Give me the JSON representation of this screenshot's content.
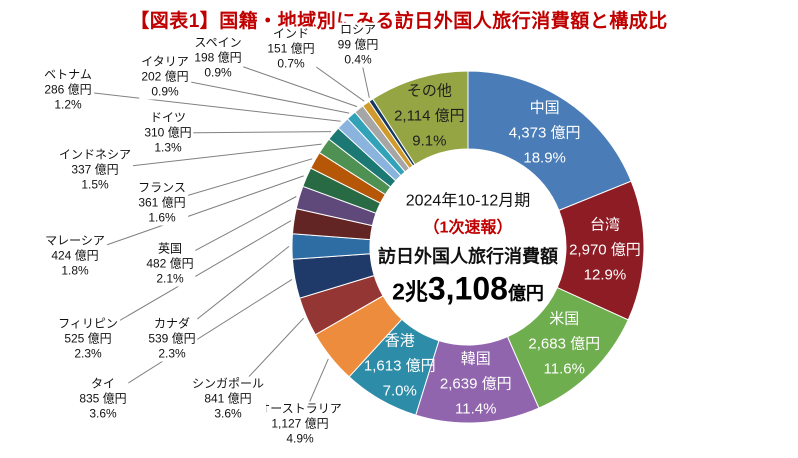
{
  "chart_data": {
    "type": "pie",
    "subtype": "donut",
    "title": "【図表1】国籍・地域別にみる訪日外国人旅行消費額と構成比",
    "title_color": "#c00000",
    "unit": "億円",
    "total": "2兆3,108億円",
    "legend_position": "none",
    "center_annotation": {
      "period": "2024年10-12月期",
      "note": "（1次速報）",
      "label": "訪日外国人旅行消費額",
      "total_prefix": "2兆",
      "total_main": "3,108",
      "total_suffix": "億円"
    },
    "segments": [
      {
        "name": "中国",
        "value": 4373,
        "value_label": "4,373 億円",
        "percent": 18.9,
        "percent_label": "18.9%",
        "color": "#4a7cb8",
        "label_placement": "inside",
        "text_color": "#ffffff"
      },
      {
        "name": "台湾",
        "value": 2970,
        "value_label": "2,970 億円",
        "percent": 12.9,
        "percent_label": "12.9%",
        "color": "#8e1c24",
        "label_placement": "inside",
        "text_color": "#ffffff"
      },
      {
        "name": "米国",
        "value": 2683,
        "value_label": "2,683 億円",
        "percent": 11.6,
        "percent_label": "11.6%",
        "color": "#6fae4e",
        "label_placement": "inside",
        "text_color": "#ffffff"
      },
      {
        "name": "韓国",
        "value": 2639,
        "value_label": "2,639 億円",
        "percent": 11.4,
        "percent_label": "11.4%",
        "color": "#9165ae",
        "label_placement": "inside",
        "text_color": "#ffffff"
      },
      {
        "name": "香港",
        "value": 1613,
        "value_label": "1,613 億円",
        "percent": 7.0,
        "percent_label": "7.0%",
        "color": "#2d8ca8",
        "label_placement": "inside",
        "text_color": "#ffffff"
      },
      {
        "name": "オーストラリア",
        "value": 1127,
        "value_label": "1,127 億円",
        "percent": 4.9,
        "percent_label": "4.9%",
        "color": "#ec8c3c",
        "label_placement": "outside",
        "text_color": "#111111"
      },
      {
        "name": "シンガポール",
        "value": 841,
        "value_label": "841 億円",
        "percent": 3.6,
        "percent_label": "3.6%",
        "color": "#943634",
        "label_placement": "outside",
        "text_color": "#111111"
      },
      {
        "name": "タイ",
        "value": 835,
        "value_label": "835 億円",
        "percent": 3.6,
        "percent_label": "3.6%",
        "color": "#1f3a68",
        "label_placement": "outside",
        "text_color": "#111111"
      },
      {
        "name": "カナダ",
        "value": 539,
        "value_label": "539 億円",
        "percent": 2.3,
        "percent_label": "2.3%",
        "color": "#2d6da3",
        "label_placement": "outside",
        "text_color": "#111111"
      },
      {
        "name": "フィリピン",
        "value": 525,
        "value_label": "525 億円",
        "percent": 2.3,
        "percent_label": "2.3%",
        "color": "#632523",
        "label_placement": "outside",
        "text_color": "#111111"
      },
      {
        "name": "英国",
        "value": 482,
        "value_label": "482 億円",
        "percent": 2.1,
        "percent_label": "2.1%",
        "color": "#5f497a",
        "label_placement": "outside",
        "text_color": "#111111"
      },
      {
        "name": "マレーシア",
        "value": 424,
        "value_label": "424 億円",
        "percent": 1.8,
        "percent_label": "1.8%",
        "color": "#276a43",
        "label_placement": "outside",
        "text_color": "#111111"
      },
      {
        "name": "フランス",
        "value": 361,
        "value_label": "361 億円",
        "percent": 1.6,
        "percent_label": "1.6%",
        "color": "#b65708",
        "label_placement": "outside",
        "text_color": "#111111"
      },
      {
        "name": "インドネシア",
        "value": 337,
        "value_label": "337 億円",
        "percent": 1.5,
        "percent_label": "1.5%",
        "color": "#4f9153",
        "label_placement": "outside",
        "text_color": "#111111"
      },
      {
        "name": "ドイツ",
        "value": 310,
        "value_label": "310 億円",
        "percent": 1.3,
        "percent_label": "1.3%",
        "color": "#1c7872",
        "label_placement": "outside",
        "text_color": "#111111"
      },
      {
        "name": "ベトナム",
        "value": 286,
        "value_label": "286 億円",
        "percent": 1.2,
        "percent_label": "1.2%",
        "color": "#8ab4dd",
        "label_placement": "outside",
        "text_color": "#111111"
      },
      {
        "name": "イタリア",
        "value": 202,
        "value_label": "202 億円",
        "percent": 0.9,
        "percent_label": "0.9%",
        "color": "#31a2b8",
        "label_placement": "outside",
        "text_color": "#111111"
      },
      {
        "name": "スペイン",
        "value": 198,
        "value_label": "198 億円",
        "percent": 0.9,
        "percent_label": "0.9%",
        "color": "#a6a6a6",
        "label_placement": "outside",
        "text_color": "#111111"
      },
      {
        "name": "インド",
        "value": 151,
        "value_label": "151 億円",
        "percent": 0.7,
        "percent_label": "0.7%",
        "color": "#d09b2c",
        "label_placement": "outside",
        "text_color": "#111111"
      },
      {
        "name": "ロシア",
        "value": 99,
        "value_label": "99 億円",
        "percent": 0.4,
        "percent_label": "0.4%",
        "color": "#17375e",
        "label_placement": "outside",
        "text_color": "#111111"
      },
      {
        "name": "その他",
        "value": 2114,
        "value_label": "2,114 億円",
        "percent": 9.1,
        "percent_label": "9.1%",
        "color": "#95a544",
        "label_placement": "inside",
        "text_color": "#1f1f1f"
      }
    ]
  }
}
